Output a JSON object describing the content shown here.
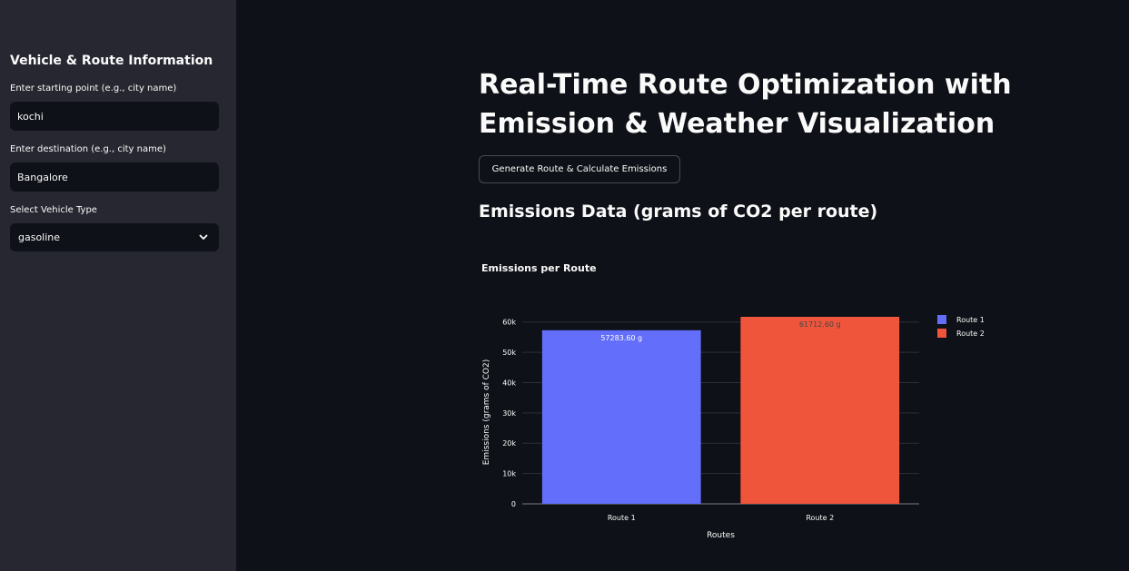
{
  "sidebar": {
    "title": "Vehicle & Route Information",
    "start": {
      "label": "Enter starting point (e.g., city name)",
      "value": "kochi"
    },
    "destination": {
      "label": "Enter destination (e.g., city name)",
      "value": "Bangalore"
    },
    "vehicle": {
      "label": "Select Vehicle Type",
      "value": "gasoline",
      "icon": "chevron-down-icon"
    }
  },
  "main": {
    "title": "Real-Time Route Optimization with Emission & Weather Visualization",
    "generate_button": "Generate Route & Calculate Emissions",
    "subheader": "Emissions Data (grams of CO2 per route)"
  },
  "colors": {
    "route1": "#636efa",
    "route2": "#ef553b",
    "sidebar_bg": "#262730",
    "main_bg": "#0e1117"
  },
  "chart_data": {
    "type": "bar",
    "title": "Emissions per Route",
    "xlabel": "Routes",
    "ylabel": "Emissions (grams of CO2)",
    "categories": [
      "Route 1",
      "Route 2"
    ],
    "values": [
      57283.6,
      61712.6
    ],
    "data_labels": [
      "57283.60 g",
      "61712.60 g"
    ],
    "series": [
      {
        "name": "Route 1",
        "values": [
          57283.6,
          null
        ]
      },
      {
        "name": "Route 2",
        "values": [
          null,
          61712.6
        ]
      }
    ],
    "ylim": [
      0,
      61712.6
    ],
    "yticks": [
      0,
      10000,
      20000,
      30000,
      40000,
      50000,
      60000
    ],
    "ytick_labels": [
      "0",
      "10k",
      "20k",
      "30k",
      "40k",
      "50k",
      "60k"
    ],
    "grid": true,
    "legend": "top-right"
  }
}
